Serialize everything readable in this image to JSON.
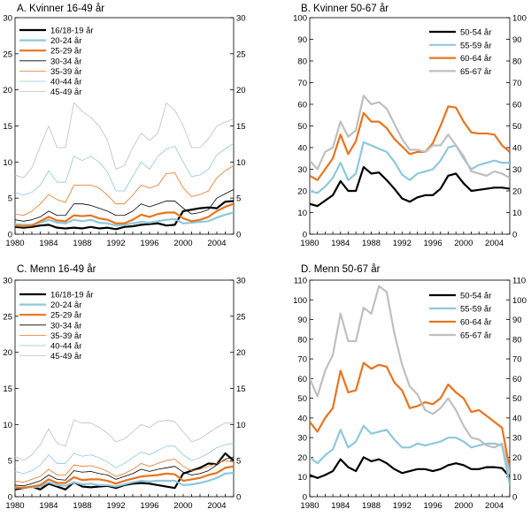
{
  "chart_data": [
    {
      "id": "A",
      "type": "line",
      "title": "A. Kvinner 16-49 år",
      "ylim": [
        0,
        30
      ],
      "yticks": [
        0,
        5,
        10,
        15,
        20,
        25,
        30
      ],
      "xlim": [
        1980,
        2006
      ],
      "xticks": [
        1980,
        1984,
        1988,
        1992,
        1996,
        2000,
        2004
      ],
      "legend_position": "top-left",
      "x": [
        1980,
        1981,
        1982,
        1983,
        1984,
        1985,
        1986,
        1987,
        1988,
        1989,
        1990,
        1991,
        1992,
        1993,
        1994,
        1995,
        1996,
        1997,
        1998,
        1999,
        2000,
        2001,
        2002,
        2003,
        2004,
        2005,
        2006
      ],
      "series": [
        {
          "name": "16/18-19 år",
          "color": "#000000",
          "width": 2.2,
          "values": [
            1.0,
            0.9,
            1.0,
            1.2,
            1.3,
            0.9,
            0.8,
            0.9,
            0.8,
            1.0,
            0.8,
            0.9,
            0.7,
            1.0,
            1.1,
            1.3,
            1.4,
            1.5,
            1.2,
            1.3,
            3.2,
            3.4,
            3.6,
            3.7,
            3.6,
            4.5,
            4.6
          ]
        },
        {
          "name": "20-24 år",
          "color": "#8ec8dd",
          "width": 2.2,
          "values": [
            1.4,
            1.3,
            1.3,
            1.6,
            2.0,
            1.6,
            1.5,
            2.0,
            1.8,
            2.0,
            1.6,
            1.5,
            1.2,
            1.3,
            1.5,
            1.7,
            1.6,
            1.8,
            2.0,
            2.1,
            1.5,
            1.6,
            1.7,
            1.8,
            2.3,
            2.7,
            3.0
          ]
        },
        {
          "name": "25-29 år",
          "color": "#e8741e",
          "width": 2.2,
          "values": [
            1.2,
            1.1,
            1.2,
            1.8,
            2.4,
            1.9,
            1.8,
            2.6,
            2.5,
            2.6,
            2.2,
            2.0,
            1.5,
            1.5,
            2.0,
            2.7,
            2.4,
            2.8,
            3.0,
            3.0,
            2.2,
            1.8,
            2.0,
            2.4,
            3.2,
            3.8,
            4.2
          ]
        },
        {
          "name": "30-34 år",
          "color": "#000000",
          "width": 0.8,
          "values": [
            2.0,
            1.8,
            2.0,
            2.4,
            3.2,
            2.6,
            2.6,
            4.2,
            4.2,
            4.0,
            3.6,
            3.2,
            2.6,
            2.6,
            3.2,
            4.2,
            3.8,
            4.2,
            4.6,
            4.6,
            3.6,
            2.8,
            3.0,
            3.4,
            5.0,
            5.6,
            6.2
          ]
        },
        {
          "name": "35-39 år",
          "color": "#e8741e",
          "width": 0.8,
          "values": [
            2.8,
            2.6,
            3.2,
            4.2,
            5.5,
            4.8,
            4.4,
            6.8,
            6.8,
            6.8,
            6.4,
            5.4,
            4.2,
            4.2,
            5.4,
            6.8,
            6.4,
            6.8,
            8.4,
            8.5,
            6.4,
            5.2,
            5.5,
            6.0,
            7.8,
            8.8,
            9.5
          ]
        },
        {
          "name": "40-44 år",
          "color": "#8ec8dd",
          "width": 0.8,
          "values": [
            5.8,
            5.4,
            5.8,
            6.8,
            8.8,
            7.2,
            7.2,
            10.8,
            10.2,
            10.8,
            10.0,
            8.6,
            6.0,
            6.0,
            8.0,
            10.0,
            9.0,
            10.8,
            11.8,
            12.2,
            10.0,
            8.0,
            8.2,
            9.0,
            11.0,
            11.8,
            12.6
          ]
        },
        {
          "name": "45-49 år",
          "color": "#bfbfbf",
          "width": 0.8,
          "values": [
            8.2,
            7.8,
            9.2,
            12.2,
            15.0,
            12.0,
            12.0,
            18.2,
            17.0,
            16.2,
            15.0,
            13.0,
            9.0,
            9.5,
            12.0,
            14.0,
            13.0,
            14.0,
            18.2,
            17.2,
            15.0,
            12.0,
            12.0,
            13.2,
            15.0,
            15.5,
            16.0
          ]
        }
      ]
    },
    {
      "id": "B",
      "type": "line",
      "title": "B. Kvinner 50-67 år",
      "ylim": [
        0,
        100
      ],
      "yticks": [
        0,
        10,
        20,
        30,
        40,
        50,
        60,
        70,
        80,
        90,
        100
      ],
      "xlim": [
        1980,
        2006
      ],
      "xticks": [
        1980,
        1984,
        1988,
        1992,
        1996,
        2000,
        2004
      ],
      "legend_position": "top-right",
      "x": [
        1980,
        1981,
        1982,
        1983,
        1984,
        1985,
        1986,
        1987,
        1988,
        1989,
        1990,
        1991,
        1992,
        1993,
        1994,
        1995,
        1996,
        1997,
        1998,
        1999,
        2000,
        2001,
        2002,
        2003,
        2004,
        2005,
        2006
      ],
      "series": [
        {
          "name": "50-54 år",
          "color": "#000000",
          "width": 2.2,
          "values": [
            14,
            13,
            15.5,
            18,
            24.5,
            20,
            20,
            31,
            28,
            28.5,
            25,
            21,
            16.5,
            15,
            17,
            18,
            18,
            21,
            27,
            28,
            23.5,
            20,
            20.5,
            21,
            21.5,
            21.5,
            21
          ]
        },
        {
          "name": "55-59 år",
          "color": "#8ec8dd",
          "width": 2.2,
          "values": [
            20,
            19,
            22,
            26,
            33,
            25,
            28,
            42.5,
            41,
            39.5,
            38,
            33.5,
            27.5,
            25,
            28,
            29,
            30,
            34,
            40,
            41,
            35,
            30,
            32,
            33,
            34,
            33,
            33
          ]
        },
        {
          "name": "60-64 år",
          "color": "#e8741e",
          "width": 2.2,
          "values": [
            27,
            25,
            30,
            35,
            46,
            37,
            43,
            56,
            52,
            52,
            49,
            44,
            40.5,
            37,
            38,
            38,
            42,
            50,
            59,
            58.5,
            52,
            47,
            46.5,
            46.5,
            46,
            41,
            38
          ]
        },
        {
          "name": "65-67 år",
          "color": "#bfbfbf",
          "width": 2.2,
          "values": [
            34,
            30,
            38,
            40,
            52,
            45,
            48,
            64,
            60,
            61,
            58,
            51,
            44,
            39,
            39,
            38,
            41,
            41,
            46,
            41,
            36,
            29,
            28,
            27,
            29,
            28,
            26
          ]
        }
      ]
    },
    {
      "id": "C",
      "type": "line",
      "title": "C. Menn 16-49 år",
      "ylim": [
        0,
        30
      ],
      "yticks": [
        0,
        5,
        10,
        15,
        20,
        25,
        30
      ],
      "xlim": [
        1980,
        2006
      ],
      "xticks": [
        1980,
        1984,
        1988,
        1992,
        1996,
        2000,
        2004
      ],
      "legend_position": "top-left",
      "x": [
        1980,
        1981,
        1982,
        1983,
        1984,
        1985,
        1986,
        1987,
        1988,
        1989,
        1990,
        1991,
        1992,
        1993,
        1994,
        1995,
        1996,
        1997,
        1998,
        1999,
        2000,
        2001,
        2002,
        2003,
        2004,
        2005,
        2006
      ],
      "series": [
        {
          "name": "16/18-19 år",
          "color": "#000000",
          "width": 2.2,
          "values": [
            1.0,
            1.2,
            1.4,
            1.0,
            1.8,
            1.4,
            1.0,
            2.0,
            1.4,
            1.3,
            1.4,
            1.5,
            1.2,
            1.6,
            1.8,
            1.9,
            1.8,
            1.6,
            1.4,
            1.2,
            3.2,
            3.6,
            4.0,
            4.6,
            4.5,
            6.0,
            5.0
          ]
        },
        {
          "name": "20-24 år",
          "color": "#8ec8dd",
          "width": 2.2,
          "values": [
            1.2,
            1.3,
            1.3,
            1.4,
            2.0,
            1.6,
            1.5,
            2.0,
            1.7,
            1.8,
            1.6,
            1.6,
            1.4,
            1.7,
            2.0,
            2.2,
            2.1,
            2.2,
            2.2,
            2.2,
            1.6,
            1.7,
            1.9,
            2.2,
            2.6,
            3.2,
            3.3
          ]
        },
        {
          "name": "25-29 år",
          "color": "#e8741e",
          "width": 2.2,
          "values": [
            1.3,
            1.2,
            1.4,
            1.6,
            2.4,
            1.9,
            1.9,
            2.7,
            2.3,
            2.4,
            2.4,
            2.2,
            1.8,
            2.2,
            2.5,
            2.8,
            2.9,
            3.0,
            3.2,
            3.1,
            2.2,
            2.4,
            2.6,
            3.0,
            3.3,
            4.0,
            4.2
          ]
        },
        {
          "name": "30-34 år",
          "color": "#000000",
          "width": 0.8,
          "values": [
            1.6,
            1.5,
            1.8,
            2.2,
            3.0,
            2.4,
            2.3,
            3.6,
            3.4,
            3.5,
            3.2,
            3.0,
            2.4,
            2.8,
            3.2,
            3.8,
            3.5,
            3.8,
            4.0,
            4.2,
            3.4,
            3.0,
            3.2,
            3.6,
            4.4,
            5.2,
            5.5
          ]
        },
        {
          "name": "35-39 år",
          "color": "#e8741e",
          "width": 0.8,
          "values": [
            2.2,
            2.0,
            2.4,
            2.8,
            3.8,
            3.0,
            3.0,
            4.4,
            4.2,
            4.3,
            4.0,
            3.5,
            2.8,
            3.2,
            3.8,
            4.6,
            4.2,
            4.6,
            5.0,
            5.2,
            4.2,
            3.6,
            3.8,
            4.2,
            4.6,
            5.0,
            4.8
          ]
        },
        {
          "name": "40-44 år",
          "color": "#8ec8dd",
          "width": 0.8,
          "values": [
            3.5,
            3.2,
            3.6,
            4.4,
            5.8,
            4.6,
            4.6,
            6.0,
            5.6,
            5.8,
            5.4,
            4.8,
            4.0,
            4.6,
            5.4,
            6.2,
            5.8,
            6.4,
            7.0,
            7.0,
            5.8,
            5.0,
            5.4,
            6.0,
            6.8,
            7.2,
            7.4
          ]
        },
        {
          "name": "45-49 år",
          "color": "#bfbfbf",
          "width": 0.8,
          "values": [
            5.6,
            5.0,
            5.8,
            7.2,
            9.4,
            7.4,
            7.0,
            10.6,
            10.2,
            10.2,
            9.6,
            8.8,
            7.6,
            8.0,
            9.0,
            10.0,
            9.6,
            10.4,
            10.6,
            10.4,
            9.0,
            7.6,
            8.0,
            8.8,
            9.6,
            10.2,
            10.2
          ]
        }
      ]
    },
    {
      "id": "D",
      "type": "line",
      "title": "D. Menn 50-67 år",
      "ylim": [
        0,
        110
      ],
      "yticks": [
        0,
        10,
        20,
        30,
        40,
        50,
        60,
        70,
        80,
        90,
        100,
        110
      ],
      "xlim": [
        1980,
        2006
      ],
      "xticks": [
        1980,
        1984,
        1988,
        1992,
        1996,
        2000,
        2004
      ],
      "legend_position": "top-right",
      "x": [
        1980,
        1981,
        1982,
        1983,
        1984,
        1985,
        1986,
        1987,
        1988,
        1989,
        1990,
        1991,
        1992,
        1993,
        1994,
        1995,
        1996,
        1997,
        1998,
        1999,
        2000,
        2001,
        2002,
        2003,
        2004,
        2005,
        2006
      ],
      "series": [
        {
          "name": "50-54 år",
          "color": "#000000",
          "width": 2.2,
          "values": [
            11,
            9.5,
            11,
            13,
            19,
            15,
            13,
            20,
            18,
            19,
            17,
            14,
            12,
            13,
            14,
            14,
            13,
            14,
            16,
            17,
            16,
            14,
            14,
            15,
            15,
            14.5,
            10
          ]
        },
        {
          "name": "55-59 år",
          "color": "#8ec8dd",
          "width": 2.2,
          "values": [
            20,
            17,
            21,
            24,
            34,
            25,
            28,
            36,
            32,
            33,
            34,
            29,
            25,
            25,
            27,
            26,
            27,
            28,
            30,
            30,
            28,
            25,
            26,
            27,
            27,
            26,
            6
          ]
        },
        {
          "name": "60-64 år",
          "color": "#e8741e",
          "width": 2.2,
          "values": [
            38,
            33,
            40,
            45,
            64,
            53,
            54,
            68,
            65,
            67,
            66,
            58,
            54,
            45,
            46,
            48,
            47,
            50,
            57,
            53,
            50,
            43,
            44,
            41,
            38,
            35,
            14
          ]
        },
        {
          "name": "65-67 år",
          "color": "#bfbfbf",
          "width": 2.2,
          "values": [
            60,
            51,
            64,
            72,
            93,
            79,
            79,
            96,
            93,
            107,
            104,
            83,
            67,
            56,
            52,
            44,
            42,
            45,
            50,
            44,
            36,
            30,
            29,
            26,
            25,
            27,
            12
          ]
        }
      ]
    }
  ]
}
